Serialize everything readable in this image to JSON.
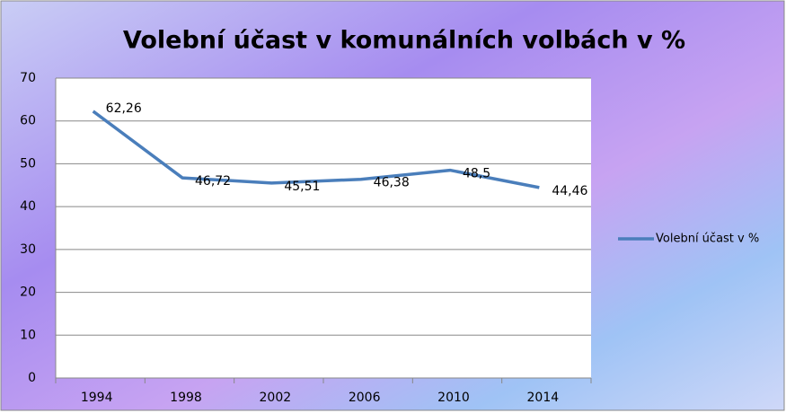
{
  "chart_data": {
    "type": "line",
    "title": "Volební účast v komunálních volbách v %",
    "categories": [
      "1994",
      "1998",
      "2002",
      "2006",
      "2010",
      "2014"
    ],
    "series": [
      {
        "name": "Volební účast v %",
        "color": "#4a7ebb",
        "values": [
          62.26,
          46.72,
          45.51,
          46.38,
          48.5,
          44.46
        ],
        "value_labels": [
          "62,26",
          "46,72",
          "45,51",
          "46,38",
          "48,5",
          "44,46"
        ]
      }
    ],
    "ylim": [
      0,
      70
    ],
    "yticks": [
      0,
      10,
      20,
      30,
      40,
      50,
      60,
      70
    ],
    "grid": true,
    "legend": "right"
  }
}
